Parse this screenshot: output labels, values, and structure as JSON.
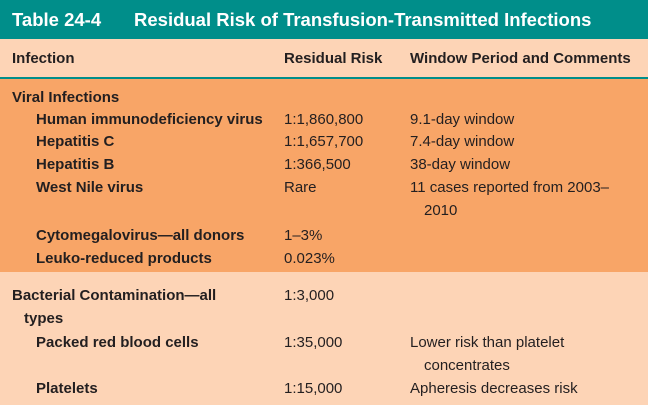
{
  "table": {
    "number": "Table 24-4",
    "title": "Residual Risk of Transfusion-Transmitted Infections"
  },
  "columns": {
    "infection": "Infection",
    "risk": "Residual Risk",
    "window": "Window Period and Comments"
  },
  "viral": {
    "heading": "Viral Infections",
    "rows": [
      {
        "name": "Human immunodeficiency virus",
        "risk": "1:1,860,800",
        "comment": "9.1-day window"
      },
      {
        "name": "Hepatitis C",
        "risk": "1:1,657,700",
        "comment": "7.4-day window"
      },
      {
        "name": "Hepatitis B",
        "risk": "1:366,500",
        "comment": "38-day window"
      },
      {
        "name": "West Nile virus",
        "risk": "Rare",
        "comment_line1": "11 cases reported from 2003–",
        "comment_line2": "2010"
      },
      {
        "name": "Cytomegalovirus—all donors",
        "risk": "1–3%"
      },
      {
        "name": "Leuko-reduced products",
        "risk": "0.023%"
      }
    ]
  },
  "bacterial": {
    "heading_line1": "Bacterial Contamination—all",
    "heading_line2": "types",
    "risk": "1:3,000",
    "rows": [
      {
        "name": "Packed red blood cells",
        "risk": "1:35,000",
        "comment_line1": "Lower risk than platelet",
        "comment_line2": "concentrates"
      },
      {
        "name": "Platelets",
        "risk": "1:15,000",
        "comment": "Apheresis decreases risk"
      }
    ]
  }
}
